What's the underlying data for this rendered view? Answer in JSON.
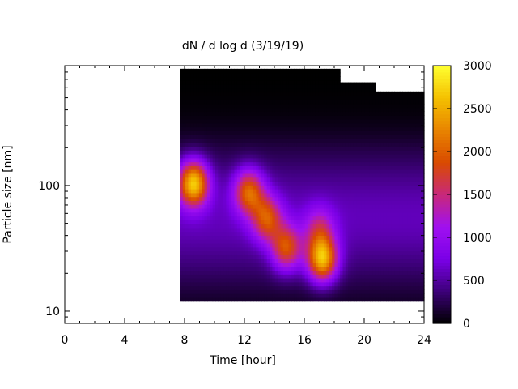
{
  "chart_data": {
    "type": "heatmap",
    "title": "dN / d log d (3/19/19)",
    "xlabel": "Time [hour]",
    "ylabel": "Particle size [nm]",
    "x_range": [
      0,
      24
    ],
    "x_ticks": [
      "0",
      "4",
      "8",
      "12",
      "16",
      "20",
      "24"
    ],
    "x_tick_values": [
      0,
      4,
      8,
      12,
      16,
      20,
      24
    ],
    "y_scale": "log",
    "y_range": [
      8,
      900
    ],
    "y_ticks": [
      "10",
      "100"
    ],
    "y_tick_values": [
      10,
      100
    ],
    "colorbar": {
      "range": [
        0,
        3000
      ],
      "ticks": [
        "0",
        "500",
        "1000",
        "1500",
        "2000",
        "2500",
        "3000"
      ],
      "tick_values": [
        0,
        500,
        1000,
        1500,
        2000,
        2500,
        3000
      ],
      "palette": [
        "#000000",
        "#3c0078",
        "#7a00e6",
        "#a010f0",
        "#c8287a",
        "#d94a00",
        "#e88400",
        "#f4c000",
        "#ffff30"
      ]
    },
    "data_extent": {
      "time_start": 7.7,
      "time_end": 24,
      "size_min": 12,
      "size_max": 850
    },
    "background_level": 600,
    "features": [
      {
        "time": 8.6,
        "size": 105,
        "peak": 2600
      },
      {
        "time": 12.3,
        "size": 90,
        "peak": 1900
      },
      {
        "time": 13.5,
        "size": 55,
        "peak": 1700
      },
      {
        "time": 14.8,
        "size": 32,
        "peak": 1800
      },
      {
        "time": 17.2,
        "size": 26,
        "peak": 2500
      },
      {
        "time": 17.0,
        "size": 45,
        "peak": 1200
      }
    ]
  }
}
